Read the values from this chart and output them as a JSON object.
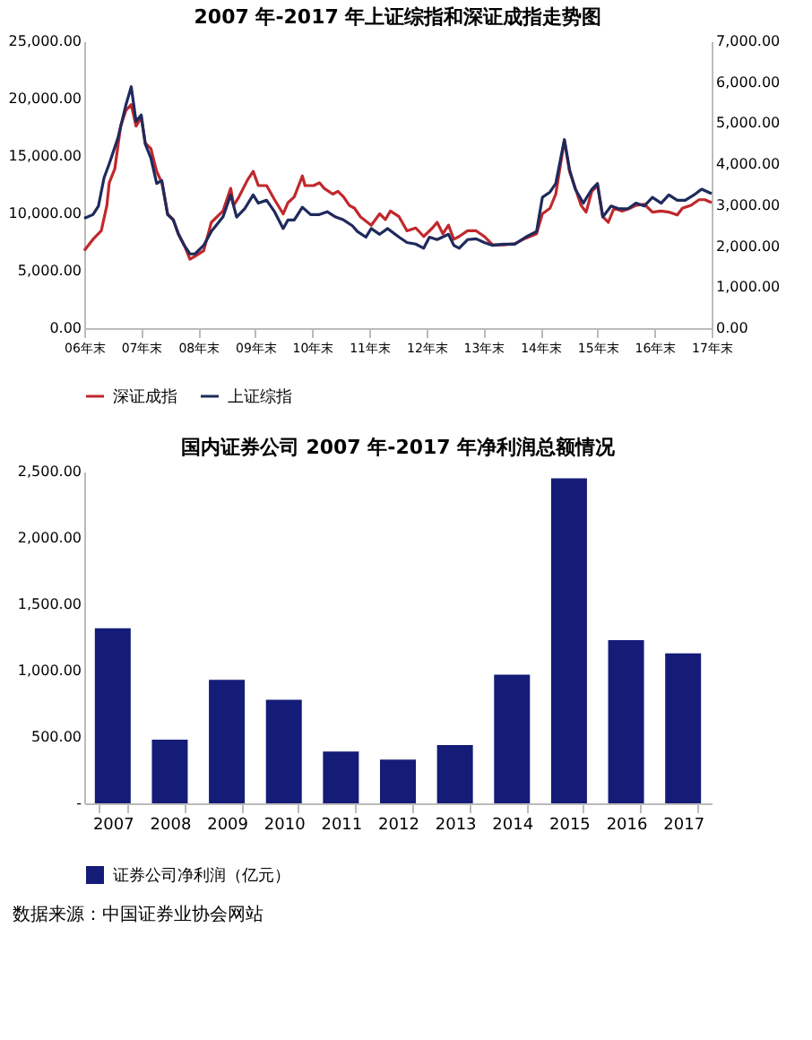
{
  "chart_data": [
    {
      "type": "line",
      "title": "2007 年-2017 年上证综指和深证成指走势图",
      "legend": "bottom",
      "xlim": [
        "2006-12-31",
        "2017-12-31"
      ],
      "xticks": [
        {
          "value": "2006-12-31",
          "label": "06年末"
        },
        {
          "value": "2007-12-31",
          "label": "07年末"
        },
        {
          "value": "2008-12-31",
          "label": "08年末"
        },
        {
          "value": "2009-12-31",
          "label": "09年末"
        },
        {
          "value": "2010-12-31",
          "label": "10年末"
        },
        {
          "value": "2011-12-31",
          "label": "11年末"
        },
        {
          "value": "2012-12-31",
          "label": "12年末"
        },
        {
          "value": "2013-12-31",
          "label": "13年末"
        },
        {
          "value": "2014-12-31",
          "label": "14年末"
        },
        {
          "value": "2015-12-31",
          "label": "15年末"
        },
        {
          "value": "2016-12-31",
          "label": "16年末"
        },
        {
          "value": "2017-12-31",
          "label": "17年末"
        }
      ],
      "ylim": [
        0,
        25000
      ],
      "yticks": [
        {
          "value": 0,
          "label": "0.00"
        },
        {
          "value": 5000,
          "label": "5,000.00"
        },
        {
          "value": 10000,
          "label": "10,000.00"
        },
        {
          "value": 15000,
          "label": "15,000.00"
        },
        {
          "value": 20000,
          "label": "20,000.00"
        },
        {
          "value": 25000,
          "label": "25,000.00"
        }
      ],
      "y2lim": [
        0,
        7000
      ],
      "y2ticks": [
        {
          "value": 0,
          "label": "0.00"
        },
        {
          "value": 1000,
          "label": "1,000.00"
        },
        {
          "value": 2000,
          "label": "2,000.00"
        },
        {
          "value": 3000,
          "label": "3,000.00"
        },
        {
          "value": 4000,
          "label": "4,000.00"
        },
        {
          "value": 5000,
          "label": "5,000.00"
        },
        {
          "value": 6000,
          "label": "6,000.00"
        },
        {
          "value": 7000,
          "label": "7,000.00"
        }
      ],
      "series": [
        {
          "name": "深证成指",
          "color": "#c0282d",
          "x": [
            "2006-12-31",
            "2007-02-25",
            "2007-04-19",
            "2007-05-25",
            "2007-06-09",
            "2007-07-15",
            "2007-08-21",
            "2007-09-24",
            "2007-10-28",
            "2007-11-28",
            "2007-12-31",
            "2008-01-26",
            "2008-03-02",
            "2008-04-08",
            "2008-05-11",
            "2008-06-17",
            "2008-07-23",
            "2008-08-25",
            "2008-10-01",
            "2008-11-07",
            "2008-12-09",
            "2009-02-03",
            "2009-03-24",
            "2009-06-06",
            "2009-07-26",
            "2009-08-14",
            "2009-09-17",
            "2009-11-11",
            "2009-12-17",
            "2010-01-19",
            "2010-03-13",
            "2010-05-03",
            "2010-06-27",
            "2010-07-28",
            "2010-09-06",
            "2010-10-28",
            "2010-11-14",
            "2011-01-08",
            "2011-02-14",
            "2011-03-17",
            "2011-05-11",
            "2011-06-13",
            "2011-07-19",
            "2011-08-25",
            "2011-09-27",
            "2011-11-03",
            "2012-01-12",
            "2012-03-06",
            "2012-04-12",
            "2012-05-14",
            "2012-07-08",
            "2012-08-28",
            "2012-10-23",
            "2012-12-13",
            "2013-02-07",
            "2013-03-09",
            "2013-04-15",
            "2013-05-21",
            "2013-06-24",
            "2013-07-28",
            "2013-09-20",
            "2013-11-14",
            "2014-01-05",
            "2014-02-28",
            "2014-05-07",
            "2014-07-19",
            "2014-09-27",
            "2014-12-06",
            "2015-01-12",
            "2015-03-02",
            "2015-04-08",
            "2015-06-02",
            "2015-07-05",
            "2015-08-11",
            "2015-09-17",
            "2015-10-19",
            "2015-11-25",
            "2015-12-31",
            "2016-02-03",
            "2016-03-09",
            "2016-04-15",
            "2016-06-06",
            "2016-07-26",
            "2016-09-02",
            "2016-10-26",
            "2016-12-17",
            "2017-02-11",
            "2017-04-01",
            "2017-05-25",
            "2017-06-27",
            "2017-08-21",
            "2017-10-12",
            "2017-11-18",
            "2017-12-31"
          ],
          "values": [
            6750,
            7740,
            8480,
            10700,
            12670,
            13900,
            17600,
            18980,
            19480,
            17600,
            18340,
            16120,
            15630,
            13650,
            12670,
            9960,
            9470,
            8230,
            7250,
            6010,
            6260,
            6750,
            9220,
            10200,
            12180,
            10700,
            11440,
            12920,
            13660,
            12420,
            12420,
            11190,
            9960,
            10940,
            11440,
            13260,
            12420,
            12420,
            12670,
            12180,
            11680,
            11930,
            11440,
            10700,
            10450,
            9710,
            8970,
            9960,
            9470,
            10200,
            9710,
            8480,
            8730,
            7990,
            8730,
            9220,
            8230,
            8970,
            7740,
            7990,
            8480,
            8480,
            7990,
            7250,
            7250,
            7350,
            7840,
            8230,
            9960,
            10450,
            11680,
            16370,
            13660,
            12180,
            10700,
            10110,
            11930,
            12420,
            9710,
            9220,
            10450,
            10200,
            10450,
            10700,
            10800,
            10110,
            10200,
            10110,
            9860,
            10450,
            10700,
            11190,
            11190,
            10940
          ]
        },
        {
          "name": "上证综指",
          "color": "#1f2a5c",
          "axis": "y2",
          "x": [
            "2006-12-31",
            "2007-02-25",
            "2007-04-01",
            "2007-05-07",
            "2007-06-09",
            "2007-08-03",
            "2007-09-24",
            "2007-10-28",
            "2007-11-28",
            "2007-12-31",
            "2008-01-26",
            "2008-03-02",
            "2008-04-08",
            "2008-05-11",
            "2008-06-17",
            "2008-07-23",
            "2008-08-25",
            "2008-10-01",
            "2008-11-07",
            "2008-12-09",
            "2009-02-03",
            "2009-03-24",
            "2009-06-06",
            "2009-07-26",
            "2009-09-02",
            "2009-10-23",
            "2009-12-17",
            "2010-01-19",
            "2010-03-13",
            "2010-05-03",
            "2010-06-27",
            "2010-07-28",
            "2010-09-06",
            "2010-10-28",
            "2010-12-20",
            "2011-02-14",
            "2011-04-05",
            "2011-05-29",
            "2011-07-19",
            "2011-09-13",
            "2011-10-15",
            "2011-12-09",
            "2012-01-12",
            "2012-03-06",
            "2012-04-26",
            "2012-07-08",
            "2012-08-28",
            "2012-10-23",
            "2012-12-13",
            "2013-01-19",
            "2013-03-09",
            "2013-05-21",
            "2013-06-24",
            "2013-07-28",
            "2013-09-20",
            "2013-11-14",
            "2014-01-05",
            "2014-02-28",
            "2014-05-07",
            "2014-07-19",
            "2014-09-27",
            "2014-12-06",
            "2015-01-12",
            "2015-03-02",
            "2015-04-08",
            "2015-06-02",
            "2015-07-05",
            "2015-08-11",
            "2015-10-01",
            "2015-11-25",
            "2015-12-31",
            "2016-02-03",
            "2016-03-27",
            "2016-05-18",
            "2016-07-12",
            "2016-09-02",
            "2016-10-26",
            "2016-12-17",
            "2017-02-11",
            "2017-04-01",
            "2017-05-25",
            "2017-07-15",
            "2017-09-09",
            "2017-10-28",
            "2017-12-31"
          ],
          "values": [
            2680,
            2770,
            2980,
            3670,
            4010,
            4630,
            5450,
            5890,
            5040,
            5200,
            4490,
            4150,
            3530,
            3600,
            2770,
            2640,
            2290,
            2020,
            1810,
            1810,
            2020,
            2360,
            2710,
            3250,
            2710,
            2910,
            3250,
            3050,
            3120,
            2840,
            2430,
            2640,
            2640,
            2950,
            2770,
            2770,
            2840,
            2710,
            2640,
            2500,
            2360,
            2220,
            2430,
            2290,
            2430,
            2220,
            2090,
            2050,
            1950,
            2220,
            2160,
            2290,
            2020,
            1950,
            2160,
            2180,
            2090,
            2020,
            2050,
            2050,
            2220,
            2360,
            3190,
            3320,
            3530,
            4600,
            3870,
            3390,
            3050,
            3390,
            3530,
            2710,
            2980,
            2910,
            2910,
            3050,
            2980,
            3190,
            3050,
            3250,
            3120,
            3120,
            3250,
            3390,
            3280
          ]
        }
      ]
    },
    {
      "type": "bar",
      "title": "国内证券公司 2007 年-2017 年净利润总额情况",
      "legend": "bottom",
      "categories": [
        "2007",
        "2008",
        "2009",
        "2010",
        "2011",
        "2012",
        "2013",
        "2014",
        "2015",
        "2016",
        "2017"
      ],
      "ylim": [
        0,
        2500
      ],
      "yticks": [
        {
          "value": 0,
          "label": "-"
        },
        {
          "value": 500,
          "label": "500.00"
        },
        {
          "value": 1000,
          "label": "1,000.00"
        },
        {
          "value": 1500,
          "label": "1,500.00"
        },
        {
          "value": 2000,
          "label": "2,000.00"
        },
        {
          "value": 2500,
          "label": "2,500.00"
        }
      ],
      "series": [
        {
          "name": "证券公司净利润（亿元）",
          "color": "#141c78",
          "values": [
            1320,
            480,
            930,
            780,
            390,
            330,
            440,
            970,
            2450,
            1230,
            1130
          ]
        }
      ],
      "annotations": [
        "数据来源：中国证券业协会网站"
      ]
    }
  ]
}
